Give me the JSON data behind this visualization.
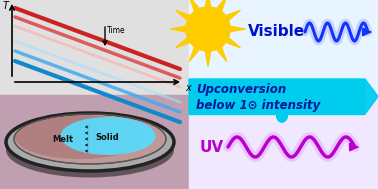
{
  "bg_top_left": "#e0e0e0",
  "bg_bottom_left": "#c0a0b0",
  "cyan_banner_color": "#00ccee",
  "banner_text_line1": "Upconversion",
  "banner_text_line2": "below 1⊙ intensity",
  "banner_text_color": "#001899",
  "visible_text": "Visible",
  "visible_color": "#0011cc",
  "uv_text": "UV",
  "uv_color": "#bb00cc",
  "wave_blue_color": "#1133ff",
  "wave_purple_color": "#bb00cc",
  "sun_color": "#ffcc00",
  "sun_edge_color": "#ff9900",
  "time_label": "Time",
  "T_label": "T",
  "x_label": "x",
  "melt_label": "Melt",
  "solid_label": "Solid",
  "line_colors": [
    "#cc2222",
    "#dd4444",
    "#ffaaaa",
    "#aaddff",
    "#44aaee",
    "#1188cc"
  ],
  "line_alphas": [
    1.0,
    0.85,
    0.6,
    0.6,
    0.85,
    1.0
  ],
  "line_widths": [
    3.0,
    2.5,
    2.0,
    2.0,
    2.5,
    3.0
  ],
  "right_bg_top": "#e8f4ff",
  "right_bg_bottom": "#f0e8ff"
}
